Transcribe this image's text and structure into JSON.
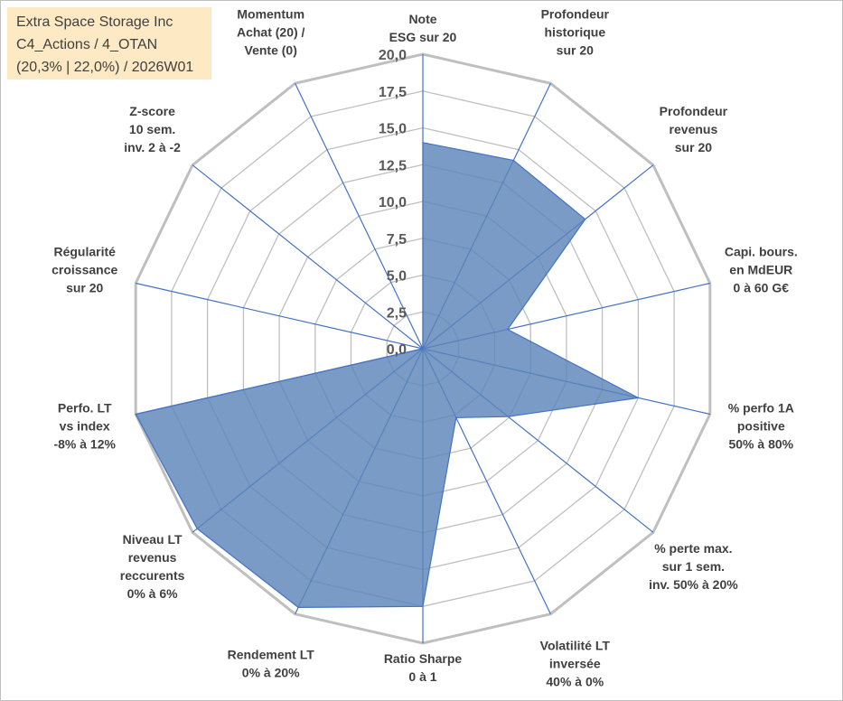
{
  "title_box": {
    "line1": "Extra Space Storage Inc",
    "line2": "C4_Actions / 4_OTAN",
    "line3": "(20,3% | 22,0%) / 2026W01"
  },
  "chart_data": {
    "type": "radar",
    "r_min": 0,
    "r_max": 20,
    "r_step": 2.5,
    "tick_labels": [
      "0,0",
      "2,5",
      "5,0",
      "7,5",
      "10,0",
      "12,5",
      "15,0",
      "17,5",
      "20,0"
    ],
    "categories": [
      [
        "Note",
        "ESG sur 20"
      ],
      [
        "Profondeur",
        "historique",
        "sur 20"
      ],
      [
        "Profondeur",
        "revenus",
        "sur 20"
      ],
      [
        "Capi. bours.",
        "en MdEUR",
        "0 à 60 G€"
      ],
      [
        "% perfo 1A",
        "positive",
        "50% à 80%"
      ],
      [
        "% perte max.",
        "sur 1 sem.",
        "inv. 50% à 20%"
      ],
      [
        "Volatilité LT",
        "inversée",
        "40% à 0%"
      ],
      [
        "Ratio Sharpe",
        "0 à 1"
      ],
      [
        "Rendement LT",
        "0% à 20%"
      ],
      [
        "Niveau LT",
        "revenus",
        "reccurents",
        "0% à 6%"
      ],
      [
        "Perfo. LT",
        "vs index",
        "-8% à 12%"
      ],
      [
        "Régularité",
        "croissance",
        "sur 20"
      ],
      [
        "Z-score",
        "10 sem.",
        "inv. 2 à -2"
      ],
      [
        "Momentum",
        "Achat (20) /",
        "Vente (0)"
      ]
    ],
    "values": [
      14.0,
      14.2,
      14.1,
      5.9,
      15.0,
      7.4,
      5.2,
      17.5,
      19.5,
      19.6,
      20.0,
      0.0,
      0.0,
      0.0
    ],
    "fill_color": "#5b85b8",
    "line_color": "#4472c4",
    "grid_color": "#bfbfbf"
  }
}
